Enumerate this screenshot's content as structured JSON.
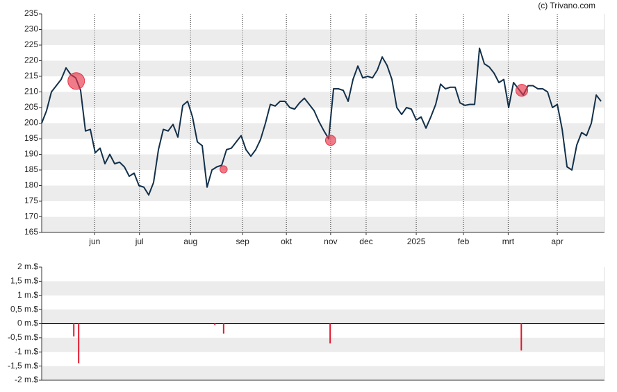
{
  "chart_data": [
    {
      "type": "line",
      "credit": "(c) Trivano.com",
      "xlim": [
        0,
        115.7
      ],
      "xticks": [
        {
          "value": 10.9,
          "label": "jun"
        },
        {
          "value": 20.1,
          "label": "jul"
        },
        {
          "value": 30.6,
          "label": "aug"
        },
        {
          "value": 41.3,
          "label": "sep"
        },
        {
          "value": 50.3,
          "label": "okt"
        },
        {
          "value": 59.4,
          "label": "nov"
        },
        {
          "value": 66.7,
          "label": "dec"
        },
        {
          "value": 77,
          "label": "2025"
        },
        {
          "value": 86.7,
          "label": "feb"
        },
        {
          "value": 95.9,
          "label": "mrt"
        },
        {
          "value": 106,
          "label": "apr"
        }
      ],
      "ylim": [
        165,
        235
      ],
      "yticks": [
        165,
        170,
        175,
        180,
        185,
        190,
        195,
        200,
        205,
        210,
        215,
        220,
        225,
        230,
        235
      ],
      "grid": true,
      "series": [
        {
          "color": "#12304a",
          "values": [
            200,
            204,
            210,
            212,
            214,
            217.7,
            215.5,
            214.5,
            210.5,
            197.5,
            198,
            190.5,
            192,
            187,
            190,
            187,
            187.5,
            186,
            183,
            184,
            180,
            179.5,
            177,
            181,
            191.5,
            198,
            197.5,
            199.6,
            195.5,
            205.7,
            207,
            202,
            194,
            192.8,
            179.5,
            185,
            186,
            186.5,
            191.5,
            192,
            194,
            196,
            191.5,
            189.4,
            191.5,
            194.8,
            200,
            206,
            205.5,
            207,
            207,
            205,
            204.5,
            206.5,
            208,
            206,
            204,
            200.5,
            197.6,
            195,
            211,
            211,
            210.5,
            207,
            214,
            218.3,
            214.5,
            215,
            214.5,
            217,
            221.2,
            218.5,
            214,
            205,
            202.8,
            205,
            204.5,
            201,
            202,
            198.4,
            202,
            206,
            212.5,
            211,
            211.5,
            211.5,
            206.5,
            205.7,
            206,
            206,
            224,
            219,
            218,
            216,
            213,
            214,
            205,
            213,
            211,
            209,
            212,
            212,
            211,
            211,
            210,
            205,
            206,
            198,
            186,
            185,
            193,
            197,
            196,
            200,
            209,
            207
          ]
        }
      ],
      "markers": {
        "color": "#e8364a",
        "x": [
          7.1,
          37.4,
          59.4,
          98.7
        ],
        "y": [
          213.5,
          185.2,
          194.5,
          210.5
        ],
        "size": [
          1.85,
          0.35,
          0.7,
          0.95
        ]
      }
    },
    {
      "type": "bar",
      "xlim": [
        0,
        115.7
      ],
      "ylim": [
        -2,
        2
      ],
      "yticks": [
        {
          "value": -2,
          "label": "-2 m.$"
        },
        {
          "value": -1.5,
          "label": "-1,5 m.$"
        },
        {
          "value": -1,
          "label": "-1 m.$"
        },
        {
          "value": -0.5,
          "label": "-0,5 m.$"
        },
        {
          "value": 0,
          "label": "0 m.$"
        },
        {
          "value": 0.5,
          "label": "0,5 m.$"
        },
        {
          "value": 1,
          "label": "1 m.$"
        },
        {
          "value": 1.5,
          "label": "1,5 m.$"
        },
        {
          "value": 2,
          "label": "2 m.$"
        }
      ],
      "grid": true,
      "color": "#e0182d",
      "x": [
        6.6,
        7.6,
        35.6,
        37.4,
        59.3,
        98.6
      ],
      "values": [
        -0.45,
        -1.4,
        -0.05,
        -0.35,
        -0.7,
        -0.95
      ]
    }
  ]
}
